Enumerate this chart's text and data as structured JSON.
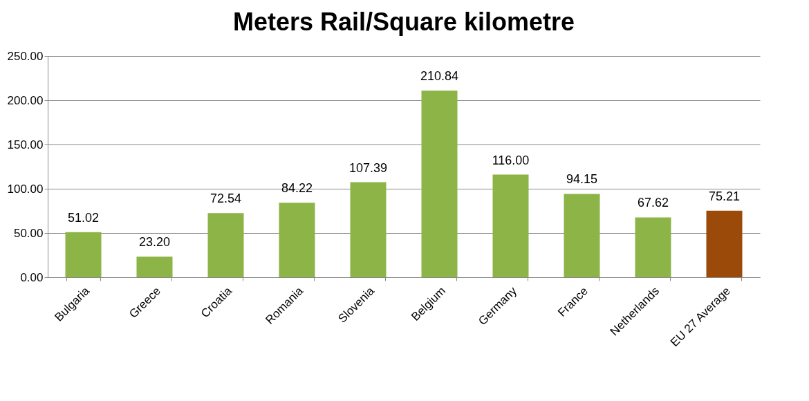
{
  "chart_data": {
    "type": "bar",
    "title": "Meters Rail/Square kilometre",
    "categories": [
      "Bulgaria",
      "Greece",
      "Croatia",
      "Romania",
      "Slovenia",
      "Belgium",
      "Germany",
      "France",
      "Netherlands",
      "EU 27 Average"
    ],
    "values": [
      51.02,
      23.2,
      72.54,
      84.22,
      107.39,
      210.84,
      116.0,
      94.15,
      67.62,
      75.21
    ],
    "colors": [
      "#8db446",
      "#8db446",
      "#8db446",
      "#8db446",
      "#8db446",
      "#8db446",
      "#8db446",
      "#8db446",
      "#8db446",
      "#9c4a0a"
    ],
    "ylim": [
      0,
      250
    ],
    "yticks": [
      {
        "value": 0,
        "label": "0.00"
      },
      {
        "value": 50,
        "label": "50.00"
      },
      {
        "value": 100,
        "label": "100.00"
      },
      {
        "value": 150,
        "label": "150.00"
      },
      {
        "value": 200,
        "label": "200.00"
      },
      {
        "value": 250,
        "label": "250.00"
      }
    ],
    "value_labels": [
      "51.02",
      "23.20",
      "72.54",
      "84.22",
      "107.39",
      "210.84",
      "116.00",
      "94.15",
      "67.62",
      "75.21"
    ],
    "grid": "y"
  }
}
